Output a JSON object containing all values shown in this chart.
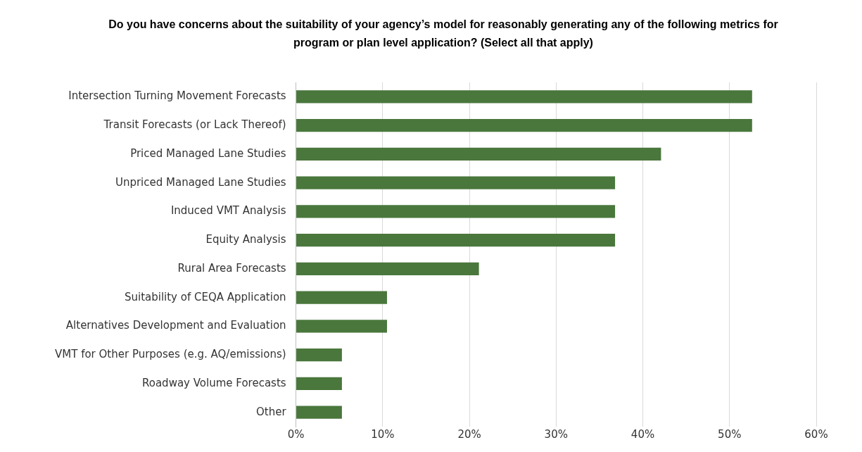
{
  "chart_data": {
    "type": "bar",
    "orientation": "horizontal",
    "title": "Do you have concerns about the suitability of your agency’s model for reasonably generating any of the following metrics for program or plan level application? (Select all that apply)",
    "categories": [
      "Intersection Turning Movement Forecasts",
      "Transit Forecasts (or Lack Thereof)",
      "Priced Managed Lane Studies",
      "Unpriced Managed Lane Studies",
      "Induced VMT Analysis",
      "Equity Analysis",
      "Rural Area Forecasts",
      "Suitability of CEQA Application",
      "Alternatives Development and Evaluation",
      "VMT for Other Purposes (e.g. AQ/emissions)",
      "Roadway Volume Forecasts",
      "Other"
    ],
    "values": [
      52.6,
      52.6,
      42.1,
      36.8,
      36.8,
      36.8,
      21.1,
      10.5,
      10.5,
      5.3,
      5.3,
      5.3
    ],
    "color": "#4a773c",
    "xlim": [
      0,
      60
    ],
    "xticks": [
      {
        "value": 0,
        "label": "0%"
      },
      {
        "value": 10,
        "label": "10%"
      },
      {
        "value": 20,
        "label": "20%"
      },
      {
        "value": 30,
        "label": "30%"
      },
      {
        "value": 40,
        "label": "40%"
      },
      {
        "value": 50,
        "label": "50%"
      },
      {
        "value": 60,
        "label": "60%"
      }
    ],
    "grid": "x"
  }
}
